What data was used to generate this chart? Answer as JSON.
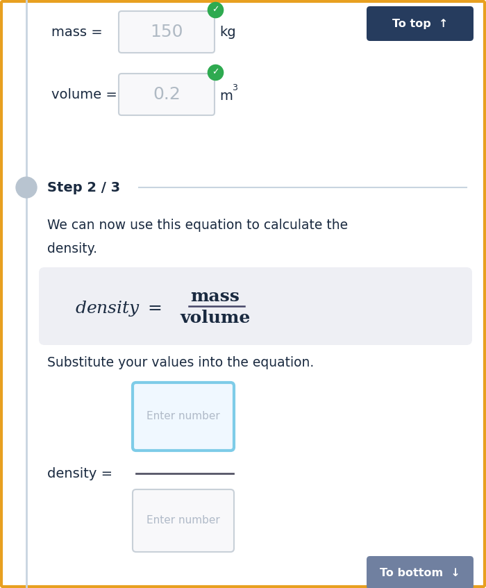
{
  "bg_color": "#ffffff",
  "border_color": "#e8a020",
  "left_line_color": "#c8d4e0",
  "left_circle_color": "#b8c4d0",
  "mass_label": "mass =",
  "mass_value": "150",
  "mass_unit": "kg",
  "volume_label": "volume =",
  "volume_value": "0.2",
  "step_label": "Step 2 / 3",
  "equation_bg": "#eeeff4",
  "substitute_text": "Substitute your values into the equation.",
  "enter_number_text": "Enter number",
  "density_label": "density =",
  "to_top_bg": "#263c5e",
  "to_top_text": "To top  ↑",
  "to_bottom_bg": "#7080a0",
  "to_bottom_text": "To bottom  ↓",
  "input_box_border": "#c8d0d8",
  "input_box_bg": "#f8f8fa",
  "active_box_border": "#7ecce8",
  "active_box_bg": "#f0f8ff",
  "check_color": "#2eaa50",
  "text_color": "#1a2a40",
  "step_line_color": "#c8d4e0",
  "fraction_line_color": "#444466",
  "density_line_color": "#555566",
  "figsize": [
    7.0,
    8.47
  ],
  "dpi": 100
}
